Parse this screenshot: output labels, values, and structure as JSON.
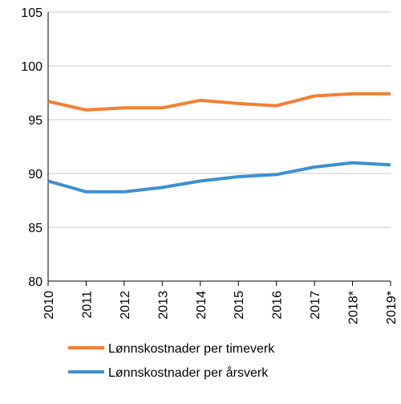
{
  "chart_data": {
    "type": "line",
    "categories": [
      "2010",
      "2011",
      "2012",
      "2013",
      "2014",
      "2015",
      "2016",
      "2017",
      "2018*",
      "2019*"
    ],
    "series": [
      {
        "name": "Lønnskostnader per timeverk",
        "color": "#f28034",
        "values": [
          96.7,
          95.9,
          96.1,
          96.1,
          96.8,
          96.5,
          96.3,
          97.2,
          97.4,
          97.4
        ]
      },
      {
        "name": "Lønnskostnader per årsverk",
        "color": "#3f8fcf",
        "values": [
          89.3,
          88.3,
          88.3,
          88.7,
          89.3,
          89.7,
          89.9,
          90.6,
          91.0,
          90.8
        ]
      }
    ],
    "yticks": [
      "80",
      "85",
      "90",
      "95",
      "100",
      "105"
    ],
    "ylim": [
      80,
      105
    ],
    "grid": true,
    "legend_position": "bottom"
  }
}
